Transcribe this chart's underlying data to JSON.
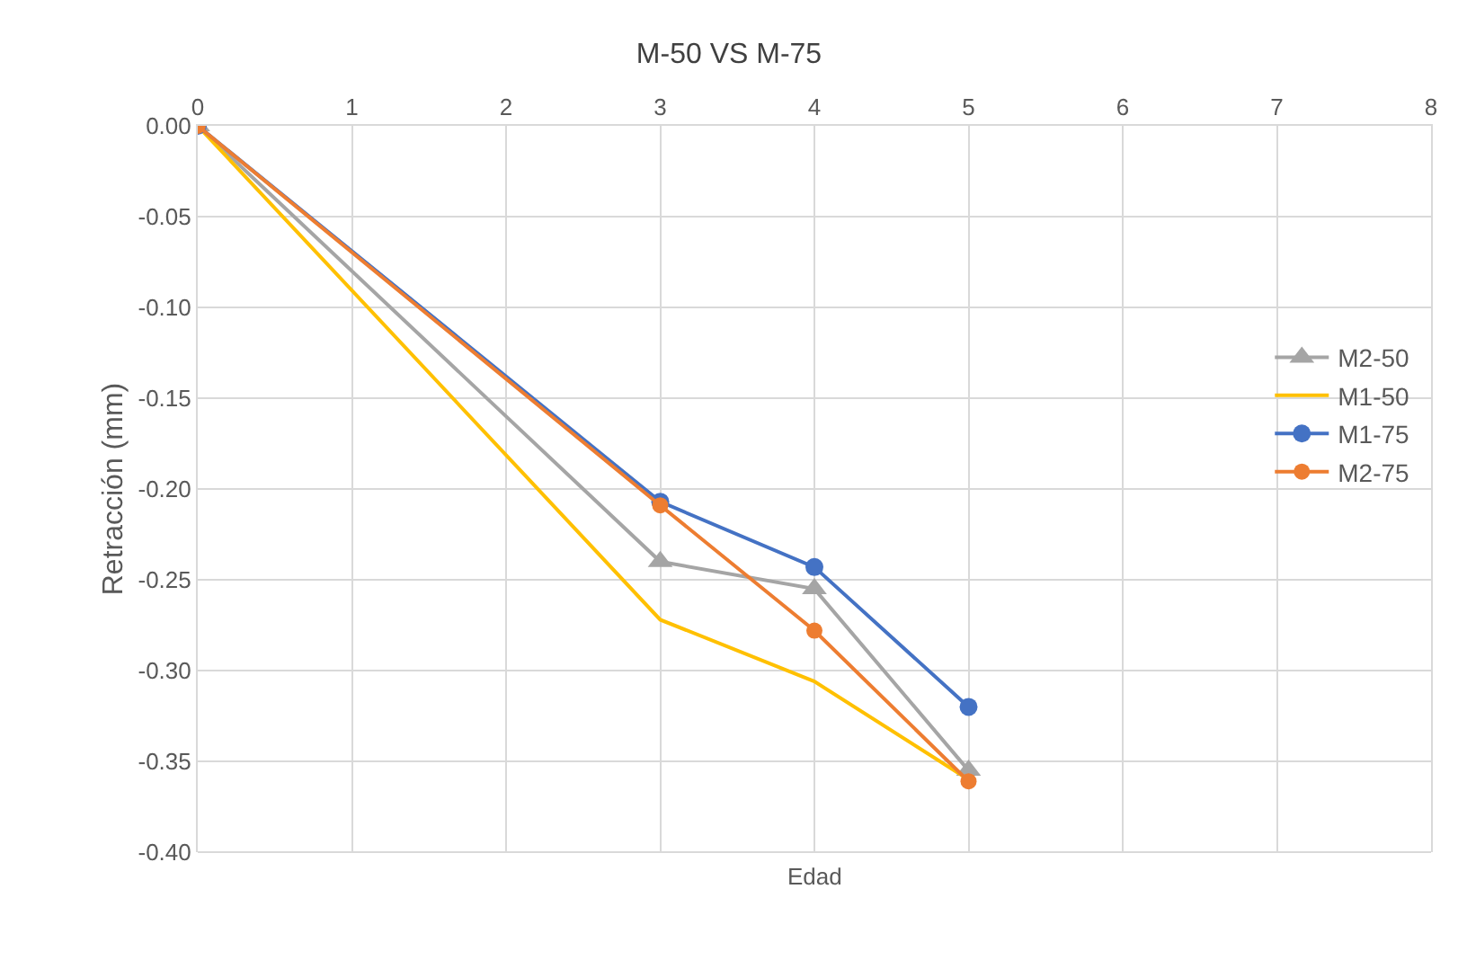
{
  "chart_data": {
    "type": "line",
    "title": "M-50 VS M-75",
    "xlabel": "Edad",
    "ylabel": "Retracción (mm)",
    "x": [
      0,
      3,
      4,
      5
    ],
    "series": [
      {
        "name": "M2-50",
        "color": "#a5a5a5",
        "marker": "triangle",
        "values": [
          0,
          -0.24,
          -0.255,
          -0.355
        ]
      },
      {
        "name": "M1-50",
        "color": "#ffc000",
        "marker": "none",
        "values": [
          0,
          -0.272,
          -0.306,
          -0.36
        ]
      },
      {
        "name": "M1-75",
        "color": "#4472c4",
        "marker": "circle",
        "values": [
          0,
          -0.207,
          -0.243,
          -0.32
        ]
      },
      {
        "name": "M2-75",
        "color": "#ed7d31",
        "marker": "circle",
        "values": [
          0,
          -0.209,
          -0.278,
          -0.361
        ]
      }
    ],
    "xlim": [
      0,
      8
    ],
    "xticks": [
      0,
      1,
      2,
      3,
      4,
      5,
      6,
      7,
      8
    ],
    "ylim": [
      -0.4,
      0
    ],
    "yticks": [
      {
        "value": 0,
        "label": "0.00"
      },
      {
        "value": -0.05,
        "label": "-0.05"
      },
      {
        "value": -0.1,
        "label": "-0.10"
      },
      {
        "value": -0.15,
        "label": "-0.15"
      },
      {
        "value": -0.2,
        "label": "-0.20"
      },
      {
        "value": -0.25,
        "label": "-0.25"
      },
      {
        "value": -0.3,
        "label": "-0.30"
      },
      {
        "value": -0.35,
        "label": "-0.35"
      },
      {
        "value": -0.4,
        "label": "-0.40"
      }
    ],
    "grid": true,
    "legend": "right",
    "line_style": "solid"
  }
}
